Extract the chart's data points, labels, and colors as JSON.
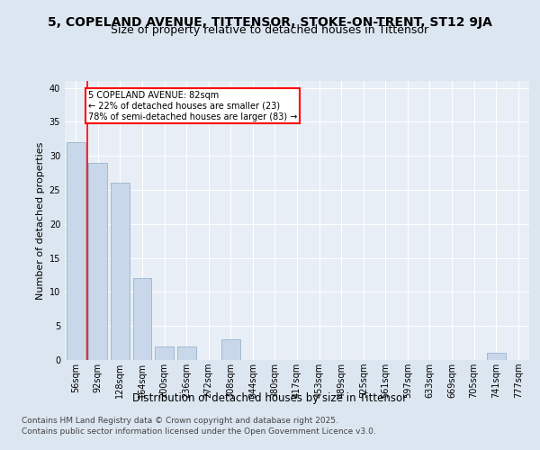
{
  "title": "5, COPELAND AVENUE, TITTENSOR, STOKE-ON-TRENT, ST12 9JA",
  "subtitle": "Size of property relative to detached houses in Tittensor",
  "xlabel": "Distribution of detached houses by size in Tittensor",
  "ylabel": "Number of detached properties",
  "categories": [
    "56sqm",
    "92sqm",
    "128sqm",
    "164sqm",
    "200sqm",
    "236sqm",
    "272sqm",
    "308sqm",
    "344sqm",
    "380sqm",
    "417sqm",
    "453sqm",
    "489sqm",
    "525sqm",
    "561sqm",
    "597sqm",
    "633sqm",
    "669sqm",
    "705sqm",
    "741sqm",
    "777sqm"
  ],
  "values": [
    32,
    29,
    26,
    12,
    2,
    2,
    0,
    3,
    0,
    0,
    0,
    0,
    0,
    0,
    0,
    0,
    0,
    0,
    0,
    1,
    0
  ],
  "bar_color": "#c8d8ea",
  "bar_edge_color": "#9ab4cc",
  "annotation_text": "5 COPELAND AVENUE: 82sqm\n← 22% of detached houses are smaller (23)\n78% of semi-detached houses are larger (83) →",
  "annotation_box_color": "white",
  "annotation_box_edge_color": "red",
  "ylim": [
    0,
    41
  ],
  "yticks": [
    0,
    5,
    10,
    15,
    20,
    25,
    30,
    35,
    40
  ],
  "footer_line1": "Contains HM Land Registry data © Crown copyright and database right 2025.",
  "footer_line2": "Contains public sector information licensed under the Open Government Licence v3.0.",
  "bg_color": "#dce6f0",
  "plot_bg_color": "#e8eef5",
  "grid_color": "white",
  "title_fontsize": 10,
  "subtitle_fontsize": 9,
  "tick_fontsize": 7,
  "ylabel_fontsize": 8,
  "xlabel_fontsize": 8.5,
  "footer_fontsize": 6.5
}
